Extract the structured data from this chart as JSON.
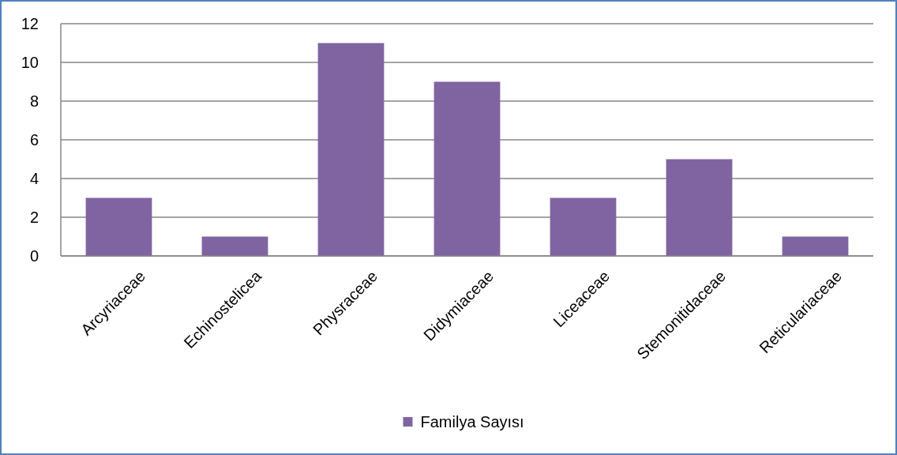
{
  "chart_data": {
    "type": "bar",
    "categories": [
      "Arcyriaceae",
      "Echinostelicea",
      "Physraceae",
      "Didymiaceae",
      "Liceaceae",
      "Stemonitidaceae",
      "Reticulariaceae"
    ],
    "series": [
      {
        "name": "Familya Sayısı",
        "color": "#8064a2",
        "values": [
          3,
          1,
          11,
          9,
          3,
          5,
          1
        ]
      }
    ],
    "ylim": [
      0,
      12
    ],
    "yticks": [
      0,
      2,
      4,
      6,
      8,
      10,
      12
    ],
    "grid": "y",
    "legend": "bottom"
  }
}
